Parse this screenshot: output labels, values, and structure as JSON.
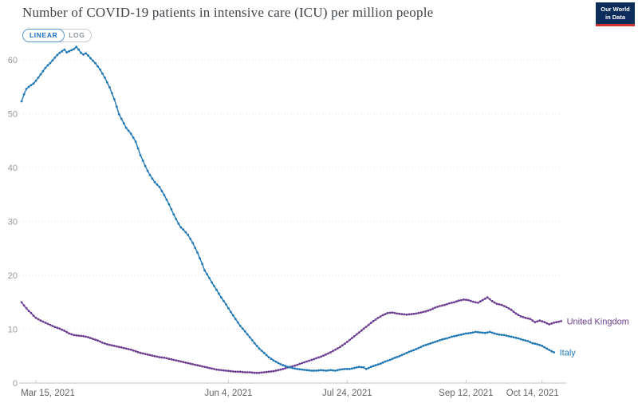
{
  "header": {
    "title": "Number of COVID-19 patients in intensive care (ICU) per million people",
    "logo": {
      "line1": "Our World",
      "line2": "in Data",
      "bg_color": "#0d2e5c",
      "bar_color": "#d0342c"
    }
  },
  "controls": {
    "linear_label": "LINEAR",
    "log_label": "LOG",
    "active": "LINEAR",
    "active_color": "#1d70c4",
    "inactive_color": "#8d9199"
  },
  "chart_data": {
    "type": "line",
    "title": "Number of COVID-19 patients in intensive care (ICU) per million people",
    "xlabel": "",
    "ylabel": "",
    "x_unit": "days since Mar 15, 2021",
    "grid": "horizontal-dotted",
    "legend_position": "line-end-labels",
    "x_axis": {
      "ticks": [
        {
          "label": "Mar 15, 2021",
          "day": 0
        },
        {
          "label": "Jun 4, 2021",
          "day": 81
        },
        {
          "label": "Jul 24, 2021",
          "day": 131
        },
        {
          "label": "Sep 12, 2021",
          "day": 181
        },
        {
          "label": "Oct 14, 2021",
          "day": 213
        }
      ],
      "range_days": [
        -6,
        222
      ]
    },
    "y_axis": {
      "ticks": [
        0,
        10,
        20,
        30,
        40,
        50,
        60
      ],
      "range": [
        0,
        65
      ]
    },
    "series": [
      {
        "name": "United Kingdom",
        "color": "#6d3e91",
        "points": [
          [
            -6,
            15.0
          ],
          [
            -5,
            14.4
          ],
          [
            -4,
            13.9
          ],
          [
            -3,
            13.4
          ],
          [
            -2,
            13.0
          ],
          [
            -1,
            12.5
          ],
          [
            0,
            12.1
          ],
          [
            2,
            11.6
          ],
          [
            4,
            11.2
          ],
          [
            6,
            10.8
          ],
          [
            8,
            10.4
          ],
          [
            10,
            10.1
          ],
          [
            12,
            9.7
          ],
          [
            14,
            9.2
          ],
          [
            16,
            8.9
          ],
          [
            18,
            8.8
          ],
          [
            20,
            8.7
          ],
          [
            22,
            8.5
          ],
          [
            24,
            8.2
          ],
          [
            26,
            7.9
          ],
          [
            28,
            7.5
          ],
          [
            30,
            7.2
          ],
          [
            32,
            7.0
          ],
          [
            34,
            6.8
          ],
          [
            36,
            6.6
          ],
          [
            38,
            6.4
          ],
          [
            40,
            6.2
          ],
          [
            42,
            5.9
          ],
          [
            44,
            5.6
          ],
          [
            46,
            5.4
          ],
          [
            48,
            5.2
          ],
          [
            50,
            5.0
          ],
          [
            52,
            4.8
          ],
          [
            54,
            4.7
          ],
          [
            56,
            4.5
          ],
          [
            58,
            4.3
          ],
          [
            60,
            4.1
          ],
          [
            62,
            3.9
          ],
          [
            64,
            3.7
          ],
          [
            66,
            3.5
          ],
          [
            68,
            3.3
          ],
          [
            70,
            3.1
          ],
          [
            72,
            2.9
          ],
          [
            74,
            2.7
          ],
          [
            76,
            2.5
          ],
          [
            78,
            2.4
          ],
          [
            80,
            2.3
          ],
          [
            82,
            2.2
          ],
          [
            84,
            2.1
          ],
          [
            86,
            2.1
          ],
          [
            88,
            2.0
          ],
          [
            90,
            2.0
          ],
          [
            92,
            1.9
          ],
          [
            94,
            1.9
          ],
          [
            96,
            2.0
          ],
          [
            98,
            2.1
          ],
          [
            100,
            2.2
          ],
          [
            102,
            2.4
          ],
          [
            104,
            2.6
          ],
          [
            106,
            2.9
          ],
          [
            108,
            3.1
          ],
          [
            110,
            3.4
          ],
          [
            112,
            3.7
          ],
          [
            114,
            4.0
          ],
          [
            116,
            4.3
          ],
          [
            118,
            4.6
          ],
          [
            120,
            4.9
          ],
          [
            122,
            5.3
          ],
          [
            124,
            5.7
          ],
          [
            126,
            6.2
          ],
          [
            128,
            6.7
          ],
          [
            130,
            7.3
          ],
          [
            132,
            8.0
          ],
          [
            134,
            8.7
          ],
          [
            136,
            9.4
          ],
          [
            138,
            10.1
          ],
          [
            140,
            10.8
          ],
          [
            142,
            11.5
          ],
          [
            144,
            12.1
          ],
          [
            146,
            12.6
          ],
          [
            148,
            13.0
          ],
          [
            150,
            13.1
          ],
          [
            152,
            12.9
          ],
          [
            154,
            12.8
          ],
          [
            156,
            12.7
          ],
          [
            158,
            12.8
          ],
          [
            160,
            12.9
          ],
          [
            162,
            13.1
          ],
          [
            164,
            13.3
          ],
          [
            166,
            13.6
          ],
          [
            168,
            14.0
          ],
          [
            170,
            14.3
          ],
          [
            172,
            14.5
          ],
          [
            174,
            14.8
          ],
          [
            176,
            15.0
          ],
          [
            178,
            15.3
          ],
          [
            180,
            15.5
          ],
          [
            182,
            15.4
          ],
          [
            184,
            15.1
          ],
          [
            186,
            14.9
          ],
          [
            188,
            15.4
          ],
          [
            190,
            15.9
          ],
          [
            192,
            15.2
          ],
          [
            194,
            14.7
          ],
          [
            196,
            14.5
          ],
          [
            198,
            14.1
          ],
          [
            200,
            13.6
          ],
          [
            202,
            12.9
          ],
          [
            204,
            12.4
          ],
          [
            206,
            12.1
          ],
          [
            208,
            11.9
          ],
          [
            210,
            11.3
          ],
          [
            212,
            11.6
          ],
          [
            214,
            11.3
          ],
          [
            216,
            10.9
          ],
          [
            218,
            11.2
          ],
          [
            220,
            11.4
          ],
          [
            221,
            11.5
          ]
        ]
      },
      {
        "name": "Italy",
        "color": "#1f77b4",
        "points": [
          [
            -6,
            52.3
          ],
          [
            -5,
            53.6
          ],
          [
            -4,
            54.6
          ],
          [
            -3,
            55.0
          ],
          [
            -2,
            55.3
          ],
          [
            -1,
            55.6
          ],
          [
            0,
            56.1
          ],
          [
            1,
            56.7
          ],
          [
            2,
            57.3
          ],
          [
            3,
            57.9
          ],
          [
            4,
            58.5
          ],
          [
            5,
            59.0
          ],
          [
            6,
            59.4
          ],
          [
            7,
            59.9
          ],
          [
            8,
            60.4
          ],
          [
            9,
            60.9
          ],
          [
            10,
            61.3
          ],
          [
            11,
            61.6
          ],
          [
            12,
            61.9
          ],
          [
            13,
            61.4
          ],
          [
            14,
            61.6
          ],
          [
            15,
            61.8
          ],
          [
            16,
            62.0
          ],
          [
            17,
            62.4
          ],
          [
            18,
            61.9
          ],
          [
            19,
            61.3
          ],
          [
            20,
            61.0
          ],
          [
            21,
            61.2
          ],
          [
            22,
            60.8
          ],
          [
            23,
            60.3
          ],
          [
            25,
            59.4
          ],
          [
            27,
            58.2
          ],
          [
            29,
            56.7
          ],
          [
            31,
            54.9
          ],
          [
            33,
            52.7
          ],
          [
            35,
            49.9
          ],
          [
            37,
            48.2
          ],
          [
            38,
            47.4
          ],
          [
            40,
            46.3
          ],
          [
            42,
            44.8
          ],
          [
            44,
            42.3
          ],
          [
            45,
            41.3
          ],
          [
            46,
            40.3
          ],
          [
            47,
            39.4
          ],
          [
            48,
            38.6
          ],
          [
            50,
            37.3
          ],
          [
            52,
            36.4
          ],
          [
            54,
            34.9
          ],
          [
            56,
            33.2
          ],
          [
            58,
            31.3
          ],
          [
            60,
            29.6
          ],
          [
            61,
            28.9
          ],
          [
            62,
            28.5
          ],
          [
            64,
            27.5
          ],
          [
            66,
            26.0
          ],
          [
            68,
            24.2
          ],
          [
            70,
            22.1
          ],
          [
            71,
            20.9
          ],
          [
            72,
            20.2
          ],
          [
            73,
            19.5
          ],
          [
            74,
            18.7
          ],
          [
            76,
            17.3
          ],
          [
            78,
            15.9
          ],
          [
            80,
            14.6
          ],
          [
            82,
            13.2
          ],
          [
            84,
            11.9
          ],
          [
            86,
            10.6
          ],
          [
            88,
            9.6
          ],
          [
            90,
            8.5
          ],
          [
            92,
            7.4
          ],
          [
            94,
            6.4
          ],
          [
            96,
            5.6
          ],
          [
            98,
            4.8
          ],
          [
            100,
            4.2
          ],
          [
            102,
            3.7
          ],
          [
            104,
            3.3
          ],
          [
            106,
            3.0
          ],
          [
            108,
            2.8
          ],
          [
            110,
            2.6
          ],
          [
            112,
            2.5
          ],
          [
            114,
            2.4
          ],
          [
            116,
            2.3
          ],
          [
            118,
            2.3
          ],
          [
            120,
            2.4
          ],
          [
            122,
            2.3
          ],
          [
            124,
            2.4
          ],
          [
            126,
            2.3
          ],
          [
            128,
            2.5
          ],
          [
            130,
            2.6
          ],
          [
            132,
            2.6
          ],
          [
            134,
            2.8
          ],
          [
            136,
            3.0
          ],
          [
            138,
            2.9
          ],
          [
            139,
            2.6
          ],
          [
            141,
            3.0
          ],
          [
            143,
            3.3
          ],
          [
            145,
            3.6
          ],
          [
            147,
            4.0
          ],
          [
            149,
            4.3
          ],
          [
            151,
            4.7
          ],
          [
            153,
            5.0
          ],
          [
            155,
            5.4
          ],
          [
            157,
            5.8
          ],
          [
            159,
            6.1
          ],
          [
            161,
            6.5
          ],
          [
            163,
            6.9
          ],
          [
            165,
            7.2
          ],
          [
            167,
            7.5
          ],
          [
            169,
            7.8
          ],
          [
            171,
            8.1
          ],
          [
            173,
            8.3
          ],
          [
            175,
            8.6
          ],
          [
            177,
            8.8
          ],
          [
            179,
            9.0
          ],
          [
            181,
            9.2
          ],
          [
            183,
            9.3
          ],
          [
            185,
            9.5
          ],
          [
            187,
            9.4
          ],
          [
            189,
            9.3
          ],
          [
            191,
            9.5
          ],
          [
            193,
            9.2
          ],
          [
            195,
            9.0
          ],
          [
            197,
            8.9
          ],
          [
            199,
            8.7
          ],
          [
            201,
            8.5
          ],
          [
            203,
            8.3
          ],
          [
            205,
            8.0
          ],
          [
            207,
            7.8
          ],
          [
            209,
            7.4
          ],
          [
            211,
            7.2
          ],
          [
            213,
            6.9
          ],
          [
            215,
            6.4
          ],
          [
            217,
            5.9
          ],
          [
            218,
            5.7
          ]
        ]
      }
    ],
    "axis_colors": {
      "gridline": "#e3e3e3",
      "baseline": "#c0c0c0",
      "tick": "#cccccc",
      "y_label": "#999999",
      "x_label": "#666666"
    }
  }
}
